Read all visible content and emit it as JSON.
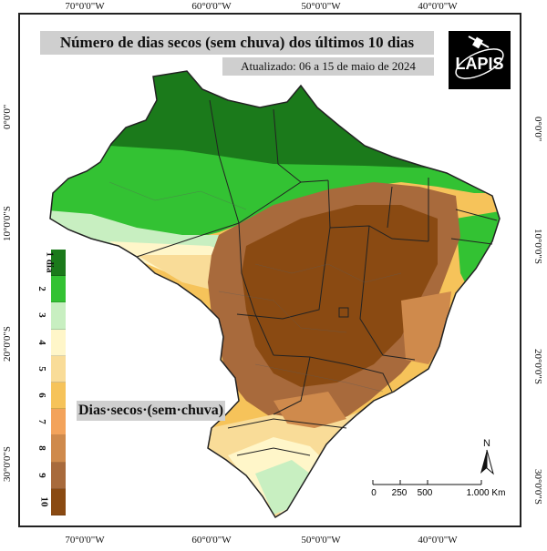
{
  "title": "Número de dias secos (sem chuva) dos últimos 10 dias",
  "subtitle": "Atualizado: 06 a 15 de maio de 2024",
  "logo_text": "LAPIS",
  "legend": {
    "title": "Dias·secos·(sem·chuva)",
    "classes": [
      {
        "label": "1 dia",
        "color": "#1b7a1b"
      },
      {
        "label": "2",
        "color": "#33c233"
      },
      {
        "label": "3",
        "color": "#c8efc1"
      },
      {
        "label": "4",
        "color": "#fff6c9"
      },
      {
        "label": "5",
        "color": "#f9dc98"
      },
      {
        "label": "6",
        "color": "#f6c35a"
      },
      {
        "label": "7",
        "color": "#f3a35b"
      },
      {
        "label": "8",
        "color": "#cf8a4c"
      },
      {
        "label": "9",
        "color": "#a86a3c"
      },
      {
        "label": "10",
        "color": "#8a4a12"
      }
    ]
  },
  "longitude_ticks": [
    "70°0'0\"W",
    "60°0'0\"W",
    "50°0'0\"W",
    "40°0'0\"W"
  ],
  "latitude_ticks": [
    "0°0'0\"",
    "10°0'0\"S",
    "20°0'0\"S",
    "30°0'0\"S"
  ],
  "scale_bar": {
    "labels": [
      "0",
      "250",
      "500",
      "1.000 Km"
    ]
  },
  "north_label": "N"
}
